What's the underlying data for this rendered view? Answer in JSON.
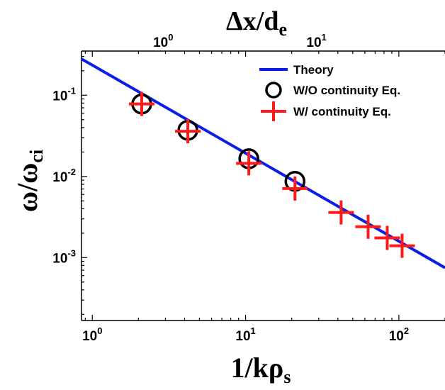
{
  "chart_data": {
    "type": "scatter",
    "x_scale": "log",
    "y_scale": "log",
    "xlim": [
      0.85,
      200
    ],
    "ylim": [
      0.000168,
      0.35
    ],
    "grid": false,
    "legend_position": "top-right",
    "xlabel": "1/kρ",
    "xlabel_sub": "s",
    "ylabel": "ω/ω",
    "ylabel_sub": "ci",
    "top_label": "Δx/d",
    "top_label_sub": "e",
    "x_ticks": [
      {
        "value": 1,
        "base": "10",
        "exp": "0"
      },
      {
        "value": 10,
        "base": "10",
        "exp": "1"
      },
      {
        "value": 100,
        "base": "10",
        "exp": "2"
      }
    ],
    "y_ticks": [
      {
        "value": 0.1,
        "base": "10",
        "exp": "-1"
      },
      {
        "value": 0.01,
        "base": "10",
        "exp": "-2"
      },
      {
        "value": 0.001,
        "base": "10",
        "exp": "-3"
      }
    ],
    "top_ticks": [
      {
        "value": 1,
        "base": "10",
        "exp": "0",
        "x_position": 2.9
      },
      {
        "value": 10,
        "base": "10",
        "exp": "1",
        "x_position": 29
      }
    ],
    "series": [
      {
        "name": "Theory",
        "kind": "line",
        "color": "#0a1ee6",
        "x": [
          0.85,
          200
        ],
        "y": [
          0.28,
          0.00075
        ]
      },
      {
        "name": "W/O continuity Eq.",
        "kind": "circle",
        "color": "#000000",
        "x": [
          2.1,
          4.2,
          10.5,
          21
        ],
        "y": [
          0.078,
          0.037,
          0.0165,
          0.0087
        ]
      },
      {
        "name": "W/ continuity Eq.",
        "kind": "plus",
        "color": "#ff1a1a",
        "x": [
          2.1,
          4.2,
          10.5,
          21,
          42,
          63,
          84,
          105
        ],
        "y": [
          0.078,
          0.036,
          0.0145,
          0.0071,
          0.0036,
          0.0024,
          0.00175,
          0.0014
        ]
      }
    ]
  }
}
